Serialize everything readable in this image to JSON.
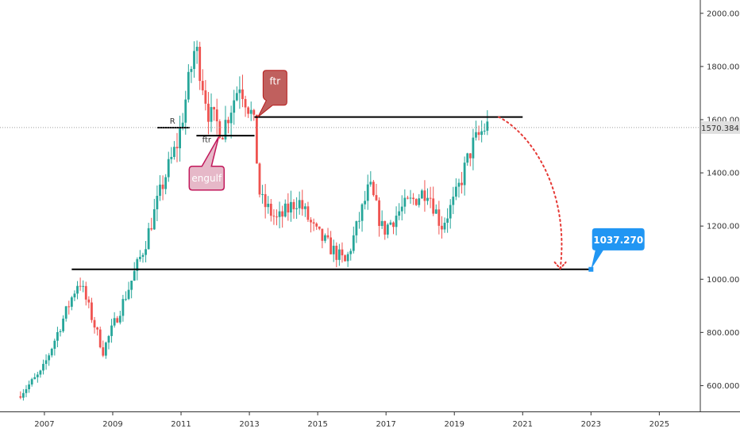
{
  "chart_data": {
    "type": "candlestick",
    "title": "",
    "xlabel": "",
    "ylabel": "",
    "xlim": [
      2005.7,
      2026.2
    ],
    "ylim": [
      500,
      2050
    ],
    "x_ticks": [
      "2007",
      "2009",
      "2011",
      "2013",
      "2015",
      "2017",
      "2019",
      "2021",
      "2023",
      "2025"
    ],
    "y_ticks": [
      "600.000",
      "800.000",
      "1000.000",
      "1200.000",
      "1400.000",
      "1600.000",
      "1800.000",
      "2000.000"
    ],
    "current_price": {
      "value": 1570.384,
      "label": "1570.384"
    },
    "colors": {
      "up": "#26a69a",
      "down": "#ef5350",
      "axis": "#333333",
      "level": "#000000",
      "target": "#2196f3",
      "arrow": "#e53935"
    },
    "key_points": [
      {
        "x": 2006.3,
        "price": 560
      },
      {
        "x": 2007.0,
        "price": 650
      },
      {
        "x": 2008.1,
        "price": 1000
      },
      {
        "x": 2008.8,
        "price": 730
      },
      {
        "x": 2009.5,
        "price": 950
      },
      {
        "x": 2010.0,
        "price": 1120
      },
      {
        "x": 2010.6,
        "price": 1380
      },
      {
        "x": 2011.0,
        "price": 1520
      },
      {
        "x": 2011.5,
        "price": 1880
      },
      {
        "x": 2011.9,
        "price": 1620
      },
      {
        "x": 2012.3,
        "price": 1560
      },
      {
        "x": 2012.8,
        "price": 1740
      },
      {
        "x": 2013.2,
        "price": 1600
      },
      {
        "x": 2013.4,
        "price": 1300
      },
      {
        "x": 2013.9,
        "price": 1220
      },
      {
        "x": 2014.5,
        "price": 1300
      },
      {
        "x": 2015.0,
        "price": 1180
      },
      {
        "x": 2015.9,
        "price": 1060
      },
      {
        "x": 2016.6,
        "price": 1350
      },
      {
        "x": 2017.0,
        "price": 1180
      },
      {
        "x": 2017.5,
        "price": 1260
      },
      {
        "x": 2018.3,
        "price": 1340
      },
      {
        "x": 2018.7,
        "price": 1200
      },
      {
        "x": 2019.1,
        "price": 1300
      },
      {
        "x": 2019.6,
        "price": 1500
      },
      {
        "x": 2020.0,
        "price": 1575
      }
    ],
    "levels": [
      {
        "name": "resistance-level",
        "x1": 2013.15,
        "x2": 2021.0,
        "price": 1610
      },
      {
        "name": "support-level",
        "x1": 2007.8,
        "x2": 2022.95,
        "price": 1037.27
      },
      {
        "name": "r-level",
        "x1": 2010.3,
        "x2": 2011.25,
        "price": 1570
      },
      {
        "name": "ftr-level",
        "x1": 2011.45,
        "x2": 2013.15,
        "price": 1540
      }
    ],
    "annotations": {
      "r": {
        "text": "R",
        "x": 2010.75,
        "price": 1585
      },
      "ftr_small": {
        "text": "ftr",
        "x": 2011.75,
        "price": 1515
      },
      "ftr_callout": {
        "text": "ftr",
        "x": 2013.75,
        "price": 1720,
        "tip_x": 2013.25,
        "tip_price": 1610
      },
      "engulf": {
        "text": "engulf",
        "x": 2011.75,
        "price": 1380,
        "tip_x": 2012.1,
        "tip_price": 1535
      },
      "target": {
        "text": "1037.270",
        "x": 2023.8,
        "price": 1150,
        "tip_x": 2023.0,
        "tip_price": 1037.27
      }
    },
    "projection": {
      "from_x": 2020.3,
      "from_price": 1610,
      "to_x": 2022.1,
      "to_price": 1040
    }
  }
}
